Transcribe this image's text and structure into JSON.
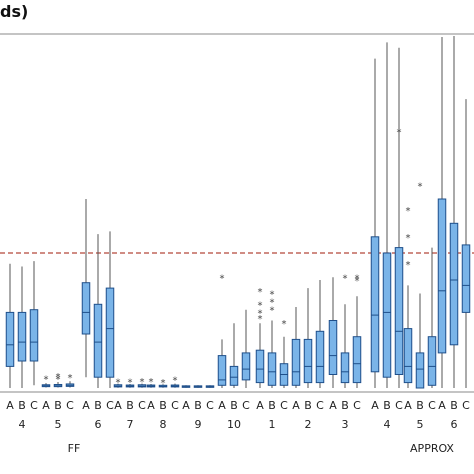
{
  "chart_data": {
    "type": "boxplot",
    "title": "ds)",
    "reference_line_value": 50,
    "subgroups": [
      "A",
      "B",
      "C"
    ],
    "groups": [
      {
        "label": "FF",
        "method": "FF",
        "categories": [
          {
            "label": "4",
            "boxes": [
              {
                "q1": 8,
                "median": 16,
                "q3": 28,
                "whisker_low": 0,
                "whisker_high": 46,
                "outliers": []
              },
              {
                "q1": 10,
                "median": 17,
                "q3": 28,
                "whisker_low": 0,
                "whisker_high": 45,
                "outliers": []
              },
              {
                "q1": 10,
                "median": 17,
                "q3": 29,
                "whisker_low": 1,
                "whisker_high": 47,
                "outliers": []
              }
            ]
          },
          {
            "label": "5",
            "boxes": [
              {
                "q1": 0.5,
                "median": 0.8,
                "q3": 1.2,
                "whisker_low": 0.2,
                "whisker_high": 1.8,
                "outliers": [
                  3.5
                ]
              },
              {
                "q1": 0.5,
                "median": 0.8,
                "q3": 1.3,
                "whisker_low": 0.2,
                "whisker_high": 2.2,
                "outliers": [
                  3.5,
                  4.5
                ]
              },
              {
                "q1": 0.6,
                "median": 1,
                "q3": 1.5,
                "whisker_low": 0.2,
                "whisker_high": 2.5,
                "outliers": [
                  4
                ]
              }
            ]
          },
          {
            "label": "6",
            "boxes": [
              {
                "q1": 20,
                "median": 28,
                "q3": 39,
                "whisker_low": 4,
                "whisker_high": 70,
                "outliers": []
              },
              {
                "q1": 4,
                "median": 17,
                "q3": 31,
                "whisker_low": 0,
                "whisker_high": 57,
                "outliers": []
              },
              {
                "q1": 4,
                "median": 22,
                "q3": 37,
                "whisker_low": 0,
                "whisker_high": 58,
                "outliers": []
              }
            ]
          },
          {
            "label": "7",
            "boxes": [
              {
                "q1": 0.4,
                "median": 0.7,
                "q3": 1.2,
                "whisker_low": 0.1,
                "whisker_high": 1.6,
                "outliers": [
                  2.5
                ]
              },
              {
                "q1": 0.4,
                "median": 0.7,
                "q3": 1.1,
                "whisker_low": 0.1,
                "whisker_high": 1.5,
                "outliers": [
                  2.4
                ]
              },
              {
                "q1": 0.4,
                "median": 0.7,
                "q3": 1.2,
                "whisker_low": 0.1,
                "whisker_high": 1.6,
                "outliers": [
                  2.6
                ]
              }
            ]
          },
          {
            "label": "8",
            "boxes": [
              {
                "q1": 0.4,
                "median": 0.7,
                "q3": 1.1,
                "whisker_low": 0.1,
                "whisker_high": 1.5,
                "outliers": [
                  2.6
                ]
              },
              {
                "q1": 0.4,
                "median": 0.6,
                "q3": 1,
                "whisker_low": 0.1,
                "whisker_high": 1.4,
                "outliers": [
                  2.2
                ]
              },
              {
                "q1": 0.4,
                "median": 0.7,
                "q3": 1.1,
                "whisker_low": 0.1,
                "whisker_high": 1.6,
                "outliers": [
                  3.2
                ]
              }
            ]
          },
          {
            "label": "9",
            "boxes": [
              {
                "q1": 0.3,
                "median": 0.5,
                "q3": 0.8,
                "whisker_low": 0.1,
                "whisker_high": 1,
                "outliers": []
              },
              {
                "q1": 0.3,
                "median": 0.5,
                "q3": 0.8,
                "whisker_low": 0.1,
                "whisker_high": 1,
                "outliers": []
              },
              {
                "q1": 0.3,
                "median": 0.5,
                "q3": 0.8,
                "whisker_low": 0.1,
                "whisker_high": 1,
                "outliers": []
              }
            ]
          },
          {
            "label": "10",
            "boxes": [
              {
                "q1": 1,
                "median": 3,
                "q3": 12,
                "whisker_low": 0,
                "whisker_high": 18,
                "outliers": [
                  41
                ]
              },
              {
                "q1": 1,
                "median": 4,
                "q3": 8,
                "whisker_low": 0,
                "whisker_high": 24,
                "outliers": []
              },
              {
                "q1": 3,
                "median": 7,
                "q3": 13,
                "whisker_low": 0,
                "whisker_high": 29,
                "outliers": []
              }
            ]
          }
        ]
      },
      {
        "label": "APPROX",
        "method": "APPROX",
        "categories": [
          {
            "label": "1",
            "boxes": [
              {
                "q1": 2,
                "median": 7,
                "q3": 14,
                "whisker_low": 0,
                "whisker_high": 24,
                "outliers": [
                  36,
                  31,
                  28,
                  26
                ]
              },
              {
                "q1": 1,
                "median": 6,
                "q3": 13,
                "whisker_low": 0,
                "whisker_high": 25,
                "outliers": [
                  35,
                  32,
                  29
                ]
              },
              {
                "q1": 1,
                "median": 5,
                "q3": 9,
                "whisker_low": 0,
                "whisker_high": 19,
                "outliers": [
                  24
                ]
              }
            ]
          },
          {
            "label": "2",
            "boxes": [
              {
                "q1": 1,
                "median": 6,
                "q3": 18,
                "whisker_low": 0,
                "whisker_high": 30,
                "outliers": []
              },
              {
                "q1": 2,
                "median": 8,
                "q3": 18,
                "whisker_low": 0,
                "whisker_high": 37,
                "outliers": []
              },
              {
                "q1": 2,
                "median": 8,
                "q3": 21,
                "whisker_low": 0,
                "whisker_high": 40,
                "outliers": []
              }
            ]
          },
          {
            "label": "3",
            "boxes": [
              {
                "q1": 5,
                "median": 12,
                "q3": 25,
                "whisker_low": 0,
                "whisker_high": 41,
                "outliers": []
              },
              {
                "q1": 2,
                "median": 6,
                "q3": 13,
                "whisker_low": 0,
                "whisker_high": 31,
                "outliers": [
                  41
                ]
              },
              {
                "q1": 2,
                "median": 9,
                "q3": 19,
                "whisker_low": 0,
                "whisker_high": 34,
                "outliers": [
                  41,
                  40
                ]
              }
            ]
          },
          {
            "label": "4",
            "boxes": [
              {
                "q1": 6,
                "median": 27,
                "q3": 56,
                "whisker_low": 0,
                "whisker_high": 122,
                "outliers": []
              },
              {
                "q1": 4,
                "median": 28,
                "q3": 50,
                "whisker_low": 0,
                "whisker_high": 128,
                "outliers": []
              },
              {
                "q1": 5,
                "median": 21,
                "q3": 52,
                "whisker_low": 0,
                "whisker_high": 126,
                "outliers": [
                  95
                ]
              }
            ]
          },
          {
            "label": "5",
            "boxes": [
              {
                "q1": 2,
                "median": 8,
                "q3": 22,
                "whisker_low": 0,
                "whisker_high": 38,
                "outliers": [
                  66,
                  56,
                  46
                ]
              },
              {
                "q1": 0,
                "median": 7,
                "q3": 13,
                "whisker_low": 0,
                "whisker_high": 35,
                "outliers": [
                  75
                ]
              },
              {
                "q1": 1,
                "median": 8,
                "q3": 19,
                "whisker_low": 0,
                "whisker_high": 52,
                "outliers": []
              }
            ]
          },
          {
            "label": "6",
            "boxes": [
              {
                "q1": 13,
                "median": 36,
                "q3": 70,
                "whisker_low": 0,
                "whisker_high": 130,
                "outliers": [
                  217
                ]
              },
              {
                "q1": 16,
                "median": 40,
                "q3": 61,
                "whisker_low": 0,
                "whisker_high": 142,
                "outliers": [
                  210
                ]
              },
              {
                "q1": 28,
                "median": 38,
                "q3": 53,
                "whisker_low": 0,
                "whisker_high": 107,
                "outliers": []
              }
            ]
          }
        ]
      }
    ],
    "colors": {
      "box_fill": "#7ab4e8",
      "box_stroke": "#1f4f8a",
      "whisker": "#555555",
      "reference_line": "#b5473a",
      "frame": "#888888",
      "outlier": "#444444"
    }
  }
}
